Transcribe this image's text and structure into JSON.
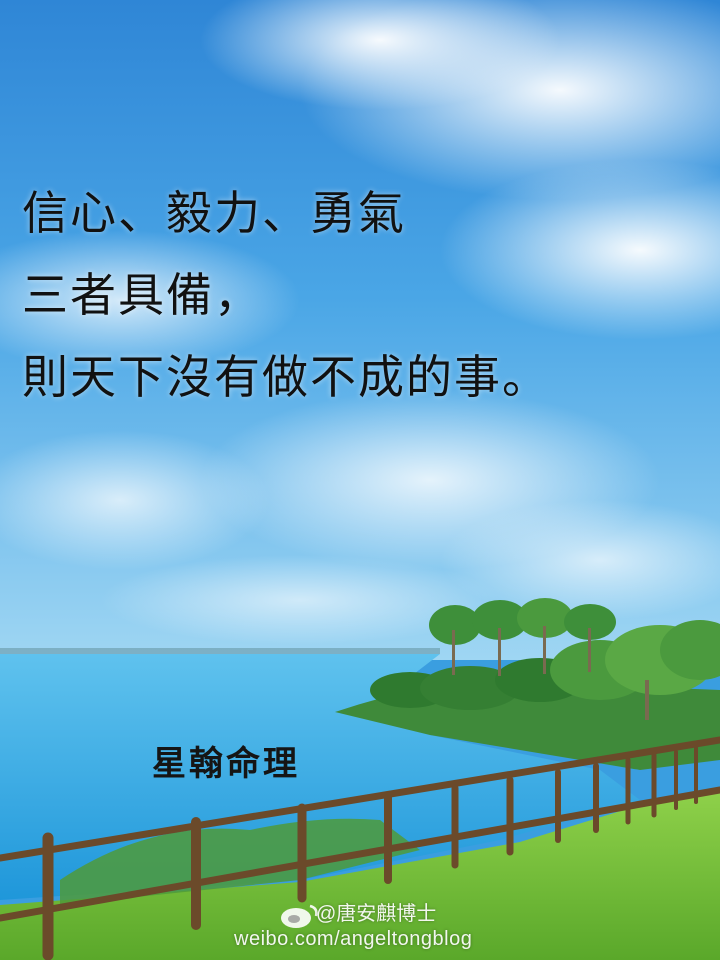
{
  "quote": {
    "lines": [
      "信心、毅力、勇氣",
      "三者具備，",
      "則天下沒有做不成的事。"
    ]
  },
  "brand": "星翰命理",
  "watermark": {
    "handle": "@唐安麒博士",
    "url": "weibo.com/angeltongblog",
    "icon": "weibo-icon"
  },
  "colors": {
    "sky_top": "#2f86d6",
    "sky_bottom": "#8fd0f2",
    "sea": "#2aa3e0",
    "grass": "#7cc63a",
    "fence": "#6b4a2a",
    "text": "#111111"
  }
}
